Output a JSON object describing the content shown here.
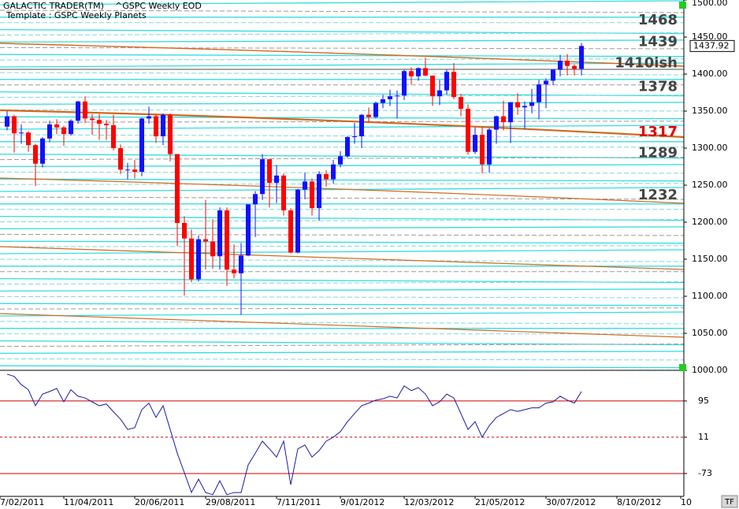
{
  "chart_data": [
    {
      "type": "candlestick",
      "title": "GALACTIC TRADER(TM)",
      "subtitle": "^GSPC Weekly EOD",
      "template": "Template : GSPC Weekly Planets",
      "x": [
        0,
        1,
        2,
        3,
        4,
        5,
        6,
        7,
        8,
        9,
        10,
        11,
        12,
        13,
        14,
        15,
        16,
        17,
        18,
        19,
        20,
        21,
        22,
        23,
        24,
        25,
        26,
        27,
        28,
        29,
        30,
        31,
        32,
        33,
        34,
        35,
        36,
        37,
        38,
        39,
        40,
        41,
        42,
        43,
        44,
        45,
        46,
        47,
        48,
        49,
        50,
        51,
        52,
        53,
        54,
        55,
        56,
        57,
        58,
        59,
        60,
        61,
        62,
        63,
        64,
        65,
        66,
        67,
        68,
        69,
        70,
        71,
        72,
        73,
        74,
        75,
        76,
        77,
        78,
        79,
        80,
        81
      ],
      "open": [
        1329,
        1343,
        1320,
        1321,
        1304,
        1279,
        1313,
        1332,
        1328,
        1319,
        1337,
        1363,
        1340,
        1338,
        1333,
        1331,
        1300,
        1271,
        1271,
        1268,
        1340,
        1343,
        1316,
        1345,
        1292,
        1199,
        1178,
        1123,
        1177,
        1174,
        1154,
        1216,
        1136,
        1131,
        1155,
        1224,
        1238,
        1285,
        1253,
        1263,
        1216,
        1159,
        1244,
        1255,
        1219,
        1265,
        1258,
        1278,
        1289,
        1315,
        1316,
        1345,
        1342,
        1361,
        1366,
        1370,
        1371,
        1404,
        1397,
        1408,
        1398,
        1370,
        1378,
        1403,
        1369,
        1353,
        1295,
        1318,
        1278,
        1325,
        1343,
        1335,
        1362,
        1355,
        1357,
        1362,
        1386,
        1391,
        1406,
        1418,
        1411,
        1407
      ],
      "high": [
        1350,
        1345,
        1332,
        1323,
        1306,
        1315,
        1337,
        1339,
        1330,
        1339,
        1364,
        1370,
        1346,
        1346,
        1338,
        1345,
        1305,
        1280,
        1284,
        1341,
        1356,
        1346,
        1347,
        1347,
        1292,
        1208,
        1190,
        1182,
        1230,
        1204,
        1220,
        1220,
        1170,
        1172,
        1224,
        1242,
        1292,
        1285,
        1277,
        1266,
        1219,
        1245,
        1267,
        1259,
        1269,
        1270,
        1284,
        1296,
        1316,
        1334,
        1346,
        1355,
        1363,
        1372,
        1379,
        1378,
        1406,
        1409,
        1409,
        1422,
        1398,
        1392,
        1406,
        1415,
        1373,
        1359,
        1328,
        1328,
        1327,
        1344,
        1364,
        1362,
        1374,
        1363,
        1380,
        1392,
        1394,
        1406,
        1426,
        1427,
        1413,
        1442
      ],
      "low": [
        1324,
        1294,
        1306,
        1295,
        1249,
        1274,
        1308,
        1319,
        1303,
        1317,
        1333,
        1334,
        1318,
        1311,
        1311,
        1297,
        1265,
        1258,
        1259,
        1262,
        1333,
        1307,
        1304,
        1282,
        1168,
        1101,
        1119,
        1120,
        1136,
        1137,
        1136,
        1114,
        1124,
        1075,
        1154,
        1180,
        1230,
        1220,
        1226,
        1209,
        1158,
        1158,
        1231,
        1209,
        1202,
        1248,
        1252,
        1274,
        1287,
        1306,
        1300,
        1335,
        1340,
        1354,
        1357,
        1340,
        1365,
        1386,
        1391,
        1397,
        1357,
        1358,
        1372,
        1366,
        1343,
        1291,
        1292,
        1266,
        1267,
        1306,
        1324,
        1307,
        1345,
        1326,
        1347,
        1339,
        1354,
        1385,
        1397,
        1398,
        1398,
        1398
      ],
      "close": [
        1343,
        1320,
        1321,
        1304,
        1279,
        1313,
        1332,
        1328,
        1319,
        1337,
        1363,
        1340,
        1338,
        1333,
        1331,
        1300,
        1271,
        1271,
        1268,
        1340,
        1343,
        1316,
        1345,
        1292,
        1199,
        1178,
        1123,
        1177,
        1174,
        1154,
        1216,
        1136,
        1131,
        1155,
        1224,
        1238,
        1285,
        1253,
        1263,
        1216,
        1159,
        1244,
        1255,
        1219,
        1265,
        1258,
        1278,
        1289,
        1315,
        1316,
        1345,
        1342,
        1361,
        1366,
        1370,
        1371,
        1404,
        1397,
        1408,
        1398,
        1370,
        1378,
        1403,
        1369,
        1353,
        1295,
        1318,
        1278,
        1325,
        1343,
        1335,
        1362,
        1355,
        1357,
        1362,
        1386,
        1391,
        1406,
        1418,
        1411,
        1407,
        1437.92
      ],
      "up_color": "#1010ff",
      "down_color": "#ff0000",
      "xlim": [
        -1,
        95.44
      ],
      "xticks": [
        {
          "value": -1,
          "label": "7/02/2011"
        },
        {
          "value": 8,
          "label": "11/04/2011"
        },
        {
          "value": 18,
          "label": "20/06/2011"
        },
        {
          "value": 28,
          "label": "29/08/2011"
        },
        {
          "value": 38,
          "label": "7/11/2011"
        },
        {
          "value": 47,
          "label": "9/01/2012"
        },
        {
          "value": 56,
          "label": "12/03/2012"
        },
        {
          "value": 66,
          "label": "21/05/2012"
        },
        {
          "value": 76,
          "label": "30/07/2012"
        },
        {
          "value": 86,
          "label": "8/10/2012"
        },
        {
          "value": 95,
          "label": "10"
        }
      ],
      "ylim": [
        1000,
        1500
      ],
      "yticks": [
        {
          "value": 1500,
          "label": "1500.00"
        },
        {
          "value": 1450,
          "label": "1450.00"
        },
        {
          "value": 1400,
          "label": "1400.00"
        },
        {
          "value": 1350,
          "label": "1350.00"
        },
        {
          "value": 1300,
          "label": "1300.00"
        },
        {
          "value": 1250,
          "label": "1250.00"
        },
        {
          "value": 1200,
          "label": "1200.00"
        },
        {
          "value": 1150,
          "label": "1150.00"
        },
        {
          "value": 1100,
          "label": "1100.00"
        },
        {
          "value": 1050,
          "label": "1050.00"
        },
        {
          "value": 1000,
          "label": "1000.00"
        }
      ],
      "last_price": 1437.92,
      "levels": [
        {
          "value": 1468,
          "label": "1468",
          "color": "#444444"
        },
        {
          "value": 1439,
          "label": "1439",
          "color": "#444444"
        },
        {
          "value": 1410,
          "label": "1410ish",
          "color": "#444444"
        },
        {
          "value": 1378,
          "label": "1378",
          "color": "#444444"
        },
        {
          "value": 1317,
          "label": "1317",
          "color": "#e00000"
        },
        {
          "value": 1289,
          "label": "1289",
          "color": "#444444"
        },
        {
          "value": 1232,
          "label": "1232",
          "color": "#444444"
        }
      ],
      "tf_label": "TF"
    },
    {
      "type": "line",
      "series": [
        {
          "color": "#1a1aa8",
          "values": [
            157,
            152,
            133,
            121,
            84,
            111,
            117,
            124,
            93,
            121,
            106,
            102,
            93,
            84,
            88,
            70,
            53,
            29,
            33,
            75,
            90,
            57,
            84,
            29,
            -26,
            -71,
            -117,
            -86,
            -117,
            -122,
            -90,
            -122,
            -117,
            -117,
            -53,
            -26,
            2,
            -16,
            -35,
            2,
            -99,
            -16,
            -7,
            -35,
            -20,
            2,
            11,
            24,
            47,
            66,
            84,
            90,
            97,
            100,
            106,
            102,
            130,
            119,
            126,
            111,
            84,
            93,
            111,
            102,
            66,
            29,
            47,
            11,
            38,
            57,
            66,
            75,
            71,
            75,
            79,
            79,
            90,
            93,
            106,
            97,
            90,
            117
          ]
        }
      ],
      "ylim": [
        -126,
        166
      ],
      "yticks": [
        95,
        11,
        -73
      ],
      "ref_line_styles": [
        "solid",
        "dashed",
        "solid"
      ],
      "ref_line_color": "#cc0000"
    }
  ]
}
